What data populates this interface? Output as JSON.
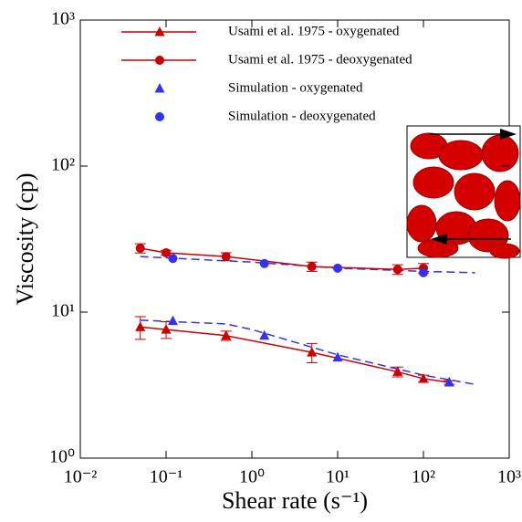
{
  "chart_data": {
    "type": "scatter",
    "xlabel": "Shear rate (s⁻¹)",
    "ylabel": "Viscosity (cp)",
    "log_x": true,
    "log_y": true,
    "xlim": [
      0.01,
      1000
    ],
    "ylim": [
      1,
      1000
    ],
    "xticks": [
      {
        "value": 0.01,
        "label": "10⁻²"
      },
      {
        "value": 0.1,
        "label": "10⁻¹"
      },
      {
        "value": 1,
        "label": "10⁰"
      },
      {
        "value": 10,
        "label": "10¹"
      },
      {
        "value": 100,
        "label": "10²"
      },
      {
        "value": 1000,
        "label": "10³"
      }
    ],
    "yticks": [
      {
        "value": 1,
        "label": "10⁰"
      },
      {
        "value": 10,
        "label": "10¹"
      },
      {
        "value": 100,
        "label": "10²"
      },
      {
        "value": 1000,
        "label": "10³"
      }
    ],
    "series": [
      {
        "name": "Usami et al. 1975 - oxygenated",
        "color": "#cc0000",
        "marker": "triangle",
        "line": true,
        "x": [
          0.05,
          0.1,
          0.5,
          5,
          50,
          100,
          200
        ],
        "values": [
          7.9,
          7.6,
          6.9,
          5.3,
          3.9,
          3.5,
          3.3
        ],
        "errors": [
          1.4,
          1.0,
          0.5,
          0.8,
          0.3,
          0.2,
          0.1
        ]
      },
      {
        "name": "Usami et al. 1975 - deoxygenated",
        "color": "#cc0000",
        "marker": "circle",
        "line": true,
        "x": [
          0.05,
          0.1,
          0.5,
          5,
          50,
          100
        ],
        "values": [
          27.4,
          25.5,
          24,
          20.5,
          19.6,
          20
        ],
        "errors": [
          2,
          1,
          1.5,
          1.5,
          1.5,
          1.5
        ]
      },
      {
        "name": "Simulation - oxygenated",
        "color": "#3333ee",
        "marker": "triangle",
        "line": false,
        "x": [
          0.12,
          1.4,
          10,
          200
        ],
        "values": [
          8.7,
          6.9,
          4.9,
          3.3
        ]
      },
      {
        "name": "Simulation - deoxygenated",
        "color": "#3333ee",
        "marker": "circle",
        "line": false,
        "x": [
          0.12,
          1.4,
          10,
          100
        ],
        "values": [
          23.3,
          21.5,
          20,
          18.6
        ]
      }
    ],
    "fits": [
      {
        "color": "#3333ee",
        "x": [
          0.05,
          0.5,
          1,
          10,
          100,
          400
        ],
        "values": [
          8.8,
          8.3,
          7.6,
          5.1,
          3.7,
          3.2
        ]
      },
      {
        "color": "#3333ee",
        "x": [
          0.05,
          1,
          10,
          100,
          400
        ],
        "values": [
          24,
          22,
          20,
          19,
          18.6
        ]
      }
    ]
  }
}
